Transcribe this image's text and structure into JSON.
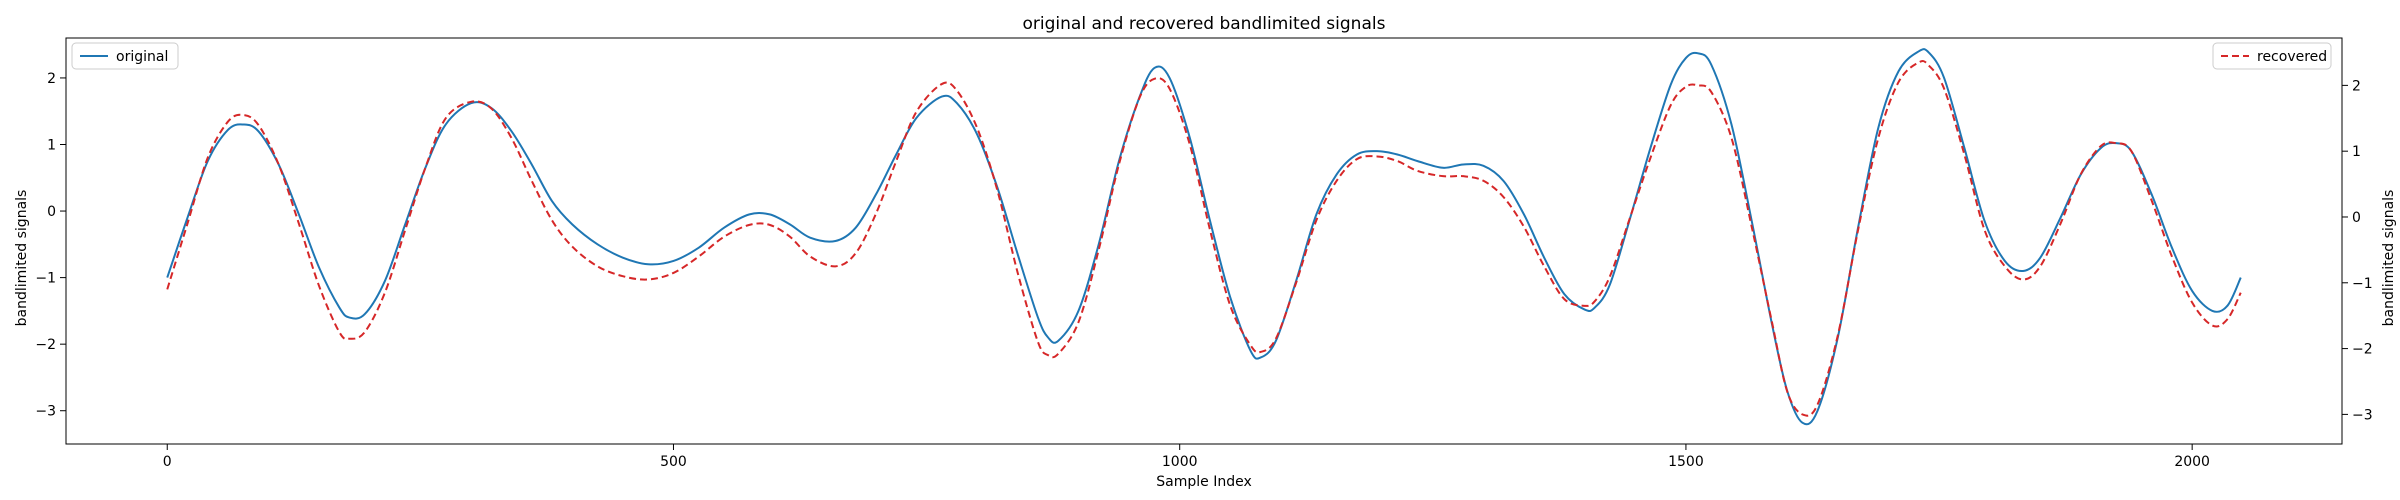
{
  "chart_data": {
    "type": "line",
    "title": "original and recovered bandlimited signals",
    "xlabel": "Sample Index",
    "ylabel_left": "bandlimited signals",
    "ylabel_right": "bandlimited signals",
    "xlim": [
      -100,
      2148
    ],
    "ylim_left": [
      -3.5,
      2.6
    ],
    "ylim_right": [
      -3.45,
      2.72
    ],
    "x_ticks": [
      0,
      500,
      1000,
      1500,
      2000
    ],
    "y_ticks_left": [
      -3,
      -2,
      -1,
      0,
      1,
      2
    ],
    "y_ticks_right": [
      -3,
      -2,
      -1,
      0,
      1,
      2
    ],
    "grid": false,
    "series": [
      {
        "name": "original",
        "axis": "left",
        "color": "#1f77b4",
        "style": "solid",
        "legend": "top-left",
        "x": [
          0,
          20,
          40,
          60,
          75,
          90,
          110,
          130,
          150,
          170,
          180,
          195,
          215,
          235,
          255,
          275,
          300,
          320,
          340,
          360,
          380,
          400,
          425,
          450,
          475,
          500,
          525,
          550,
          575,
          595,
          615,
          635,
          660,
          680,
          700,
          720,
          740,
          765,
          780,
          800,
          820,
          840,
          860,
          870,
          880,
          900,
          920,
          940,
          960,
          975,
          990,
          1010,
          1030,
          1050,
          1070,
          1080,
          1095,
          1115,
          1135,
          1155,
          1175,
          1195,
          1215,
          1235,
          1260,
          1280,
          1300,
          1320,
          1340,
          1360,
          1380,
          1400,
          1410,
          1425,
          1445,
          1465,
          1485,
          1500,
          1512,
          1525,
          1545,
          1565,
          1585,
          1600,
          1615,
          1630,
          1650,
          1670,
          1690,
          1710,
          1730,
          1740,
          1755,
          1775,
          1795,
          1815,
          1833,
          1850,
          1870,
          1890,
          1910,
          1925,
          1940,
          1960,
          1980,
          2000,
          2020,
          2035,
          2048
        ],
        "y": [
          -1.0,
          -0.1,
          0.75,
          1.22,
          1.3,
          1.2,
          0.7,
          -0.05,
          -0.85,
          -1.45,
          -1.6,
          -1.55,
          -1.05,
          -0.2,
          0.65,
          1.3,
          1.62,
          1.55,
          1.2,
          0.7,
          0.15,
          -0.2,
          -0.5,
          -0.7,
          -0.8,
          -0.75,
          -0.55,
          -0.25,
          -0.05,
          -0.05,
          -0.2,
          -0.4,
          -0.45,
          -0.25,
          0.25,
          0.85,
          1.4,
          1.72,
          1.62,
          1.15,
          0.35,
          -0.65,
          -1.6,
          -1.9,
          -1.95,
          -1.5,
          -0.5,
          0.75,
          1.7,
          2.15,
          2.0,
          1.1,
          -0.15,
          -1.3,
          -2.1,
          -2.2,
          -1.95,
          -1.05,
          -0.05,
          0.55,
          0.85,
          0.9,
          0.85,
          0.75,
          0.65,
          0.7,
          0.68,
          0.45,
          -0.05,
          -0.7,
          -1.25,
          -1.48,
          -1.45,
          -1.1,
          -0.1,
          0.95,
          1.9,
          2.3,
          2.37,
          2.2,
          1.3,
          -0.15,
          -1.7,
          -2.7,
          -3.18,
          -3.0,
          -1.9,
          -0.25,
          1.25,
          2.1,
          2.4,
          2.38,
          2.0,
          0.95,
          -0.15,
          -0.75,
          -0.9,
          -0.7,
          -0.1,
          0.55,
          0.95,
          1.02,
          0.9,
          0.25,
          -0.55,
          -1.2,
          -1.5,
          -1.42,
          -1.0
        ]
      },
      {
        "name": "recovered",
        "axis": "right",
        "color": "#d62728",
        "style": "dashed",
        "legend": "top-right",
        "x": [
          0,
          20,
          40,
          60,
          75,
          90,
          110,
          130,
          150,
          170,
          180,
          195,
          215,
          235,
          255,
          275,
          300,
          320,
          340,
          360,
          380,
          400,
          425,
          450,
          475,
          500,
          525,
          550,
          575,
          595,
          615,
          635,
          660,
          680,
          700,
          720,
          740,
          765,
          780,
          800,
          820,
          840,
          860,
          870,
          880,
          900,
          920,
          940,
          960,
          975,
          990,
          1010,
          1030,
          1050,
          1070,
          1080,
          1095,
          1115,
          1135,
          1155,
          1175,
          1195,
          1215,
          1235,
          1260,
          1280,
          1300,
          1320,
          1340,
          1360,
          1380,
          1400,
          1410,
          1425,
          1445,
          1465,
          1485,
          1500,
          1512,
          1525,
          1545,
          1565,
          1585,
          1600,
          1615,
          1630,
          1650,
          1670,
          1690,
          1710,
          1730,
          1740,
          1755,
          1775,
          1795,
          1815,
          1833,
          1850,
          1870,
          1890,
          1910,
          1925,
          1940,
          1960,
          1980,
          2000,
          2020,
          2035,
          2048
        ],
        "y": [
          -1.1,
          -0.1,
          0.9,
          1.45,
          1.55,
          1.4,
          0.8,
          -0.1,
          -1.05,
          -1.75,
          -1.85,
          -1.75,
          -1.15,
          -0.2,
          0.75,
          1.5,
          1.75,
          1.65,
          1.2,
          0.55,
          -0.05,
          -0.45,
          -0.75,
          -0.9,
          -0.95,
          -0.85,
          -0.6,
          -0.3,
          -0.12,
          -0.12,
          -0.3,
          -0.6,
          -0.75,
          -0.55,
          0.05,
          0.85,
          1.6,
          2.02,
          1.92,
          1.35,
          0.4,
          -0.85,
          -1.9,
          -2.1,
          -2.08,
          -1.6,
          -0.5,
          0.8,
          1.8,
          2.1,
          1.95,
          1.1,
          -0.2,
          -1.35,
          -1.95,
          -2.05,
          -1.85,
          -1.0,
          -0.05,
          0.55,
          0.88,
          0.92,
          0.85,
          0.7,
          0.62,
          0.62,
          0.55,
          0.3,
          -0.15,
          -0.75,
          -1.25,
          -1.35,
          -1.28,
          -0.9,
          0.0,
          0.9,
          1.7,
          1.98,
          2.0,
          1.9,
          1.2,
          -0.15,
          -1.6,
          -2.65,
          -3.0,
          -2.85,
          -1.8,
          -0.2,
          1.2,
          2.05,
          2.35,
          2.3,
          1.95,
          0.95,
          -0.2,
          -0.75,
          -0.95,
          -0.75,
          -0.1,
          0.65,
          1.08,
          1.12,
          1.0,
          0.25,
          -0.6,
          -1.3,
          -1.65,
          -1.55,
          -1.15
        ]
      }
    ]
  }
}
